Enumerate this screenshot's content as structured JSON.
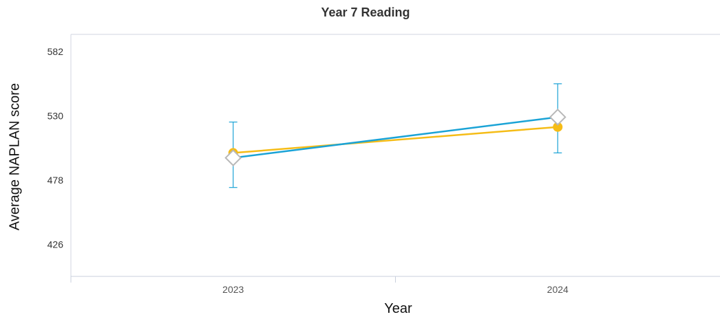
{
  "chart_data": {
    "type": "line",
    "title": "Year 7 Reading",
    "xlabel": "Year",
    "ylabel": "Average NAPLAN score",
    "categories": [
      "2023",
      "2024"
    ],
    "y_ticks": [
      426,
      478,
      530,
      582
    ],
    "ylim": [
      400,
      596
    ],
    "grid": false,
    "series": [
      {
        "color": "#f5bc16",
        "marker": "circle",
        "values": [
          500,
          521
        ]
      },
      {
        "color": "#1aa3d6",
        "marker": "diamond",
        "values": [
          496,
          529
        ],
        "error_low": [
          472,
          500
        ],
        "error_high": [
          525,
          556
        ]
      }
    ]
  }
}
